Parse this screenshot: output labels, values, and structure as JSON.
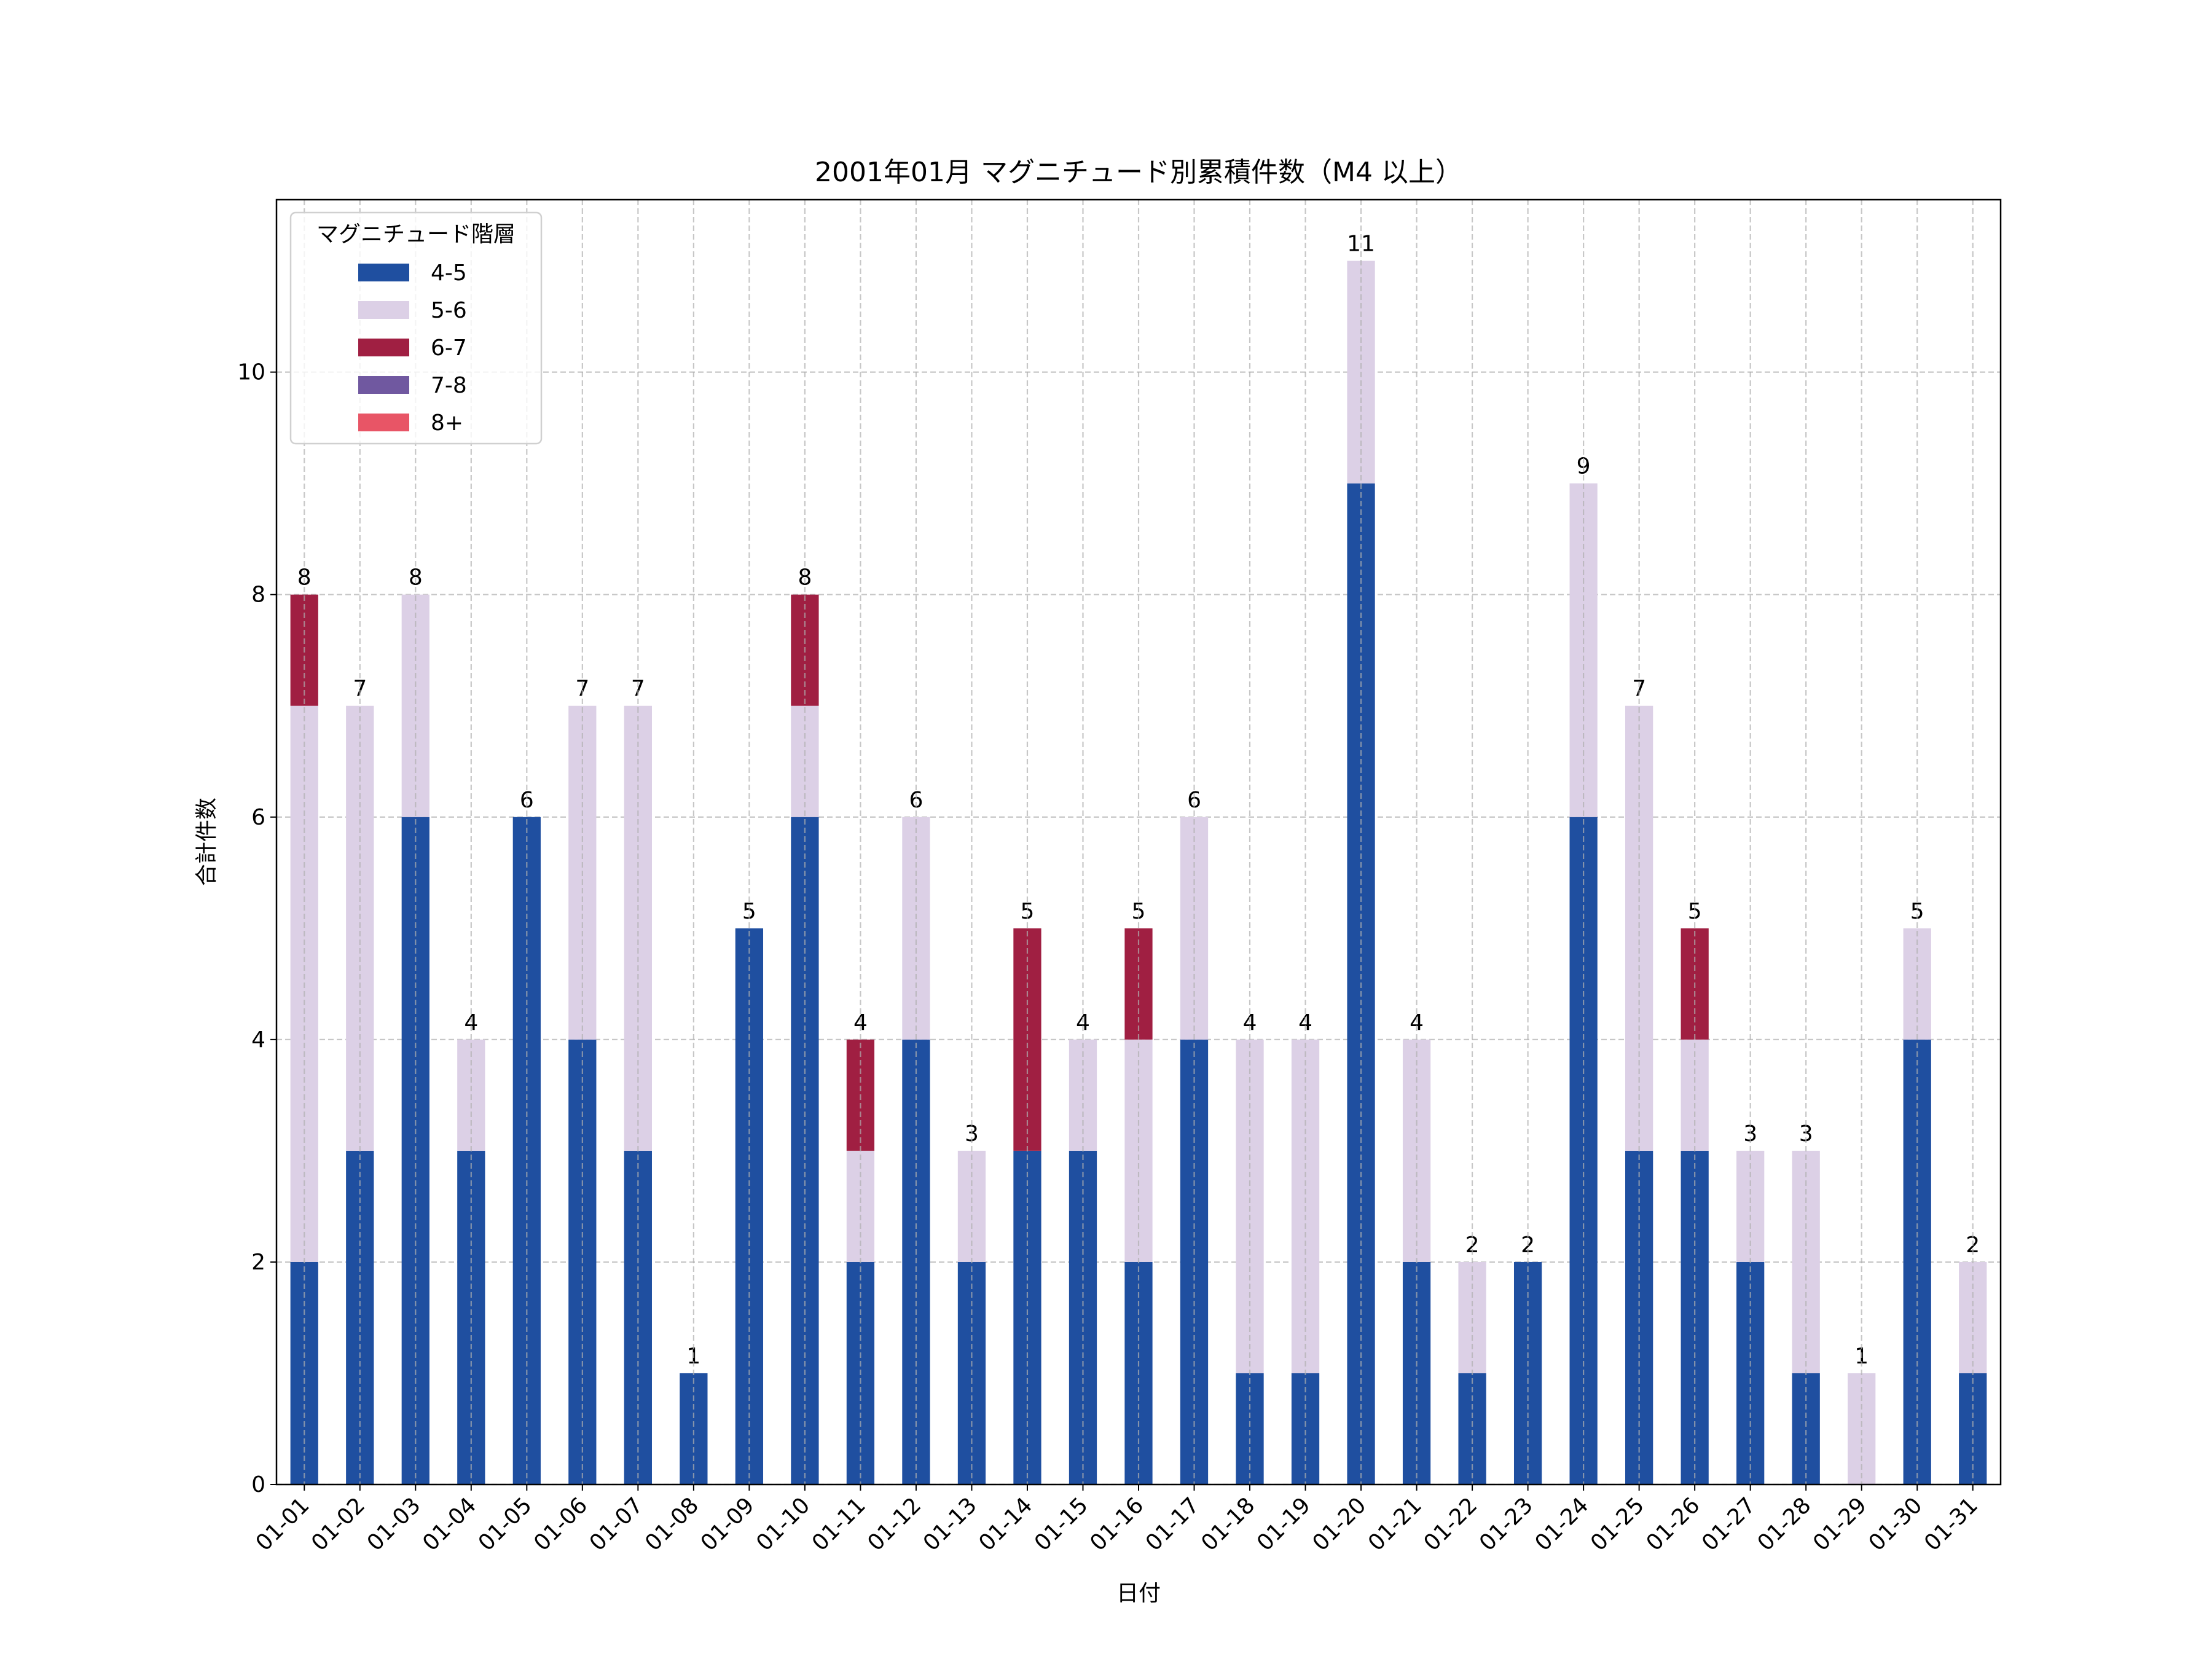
{
  "chart_data": {
    "type": "bar",
    "stacked": true,
    "title": "2001年01月 マグニチュード別累積件数（M4 以上）",
    "xlabel": "日付",
    "ylabel": "合計件数",
    "ylim": [
      0,
      11.55
    ],
    "yticks": [
      0,
      2,
      4,
      6,
      8,
      10
    ],
    "grid": true,
    "legend": {
      "title": "マグニチュード階層",
      "placement": "top-left"
    },
    "categories": [
      "01-01",
      "01-02",
      "01-03",
      "01-04",
      "01-05",
      "01-06",
      "01-07",
      "01-08",
      "01-09",
      "01-10",
      "01-11",
      "01-12",
      "01-13",
      "01-14",
      "01-15",
      "01-16",
      "01-17",
      "01-18",
      "01-19",
      "01-20",
      "01-21",
      "01-22",
      "01-23",
      "01-24",
      "01-25",
      "01-26",
      "01-27",
      "01-28",
      "01-29",
      "01-30",
      "01-31"
    ],
    "series": [
      {
        "name": "4-5",
        "color": "#1f4fa0",
        "values": [
          2,
          3,
          6,
          3,
          6,
          4,
          3,
          1,
          5,
          6,
          2,
          4,
          2,
          3,
          3,
          2,
          4,
          1,
          1,
          9,
          2,
          1,
          2,
          6,
          3,
          3,
          2,
          1,
          0,
          4,
          1
        ]
      },
      {
        "name": "5-6",
        "color": "#dcd0e6",
        "values": [
          5,
          4,
          2,
          1,
          0,
          3,
          4,
          0,
          0,
          1,
          1,
          2,
          1,
          0,
          1,
          2,
          2,
          3,
          3,
          2,
          2,
          1,
          0,
          3,
          4,
          1,
          1,
          2,
          1,
          1,
          1
        ]
      },
      {
        "name": "6-7",
        "color": "#a01f42",
        "values": [
          1,
          0,
          0,
          0,
          0,
          0,
          0,
          0,
          0,
          1,
          1,
          0,
          0,
          2,
          0,
          1,
          0,
          0,
          0,
          0,
          0,
          0,
          0,
          0,
          0,
          1,
          0,
          0,
          0,
          0,
          0
        ]
      },
      {
        "name": "7-8",
        "color": "#7058a0",
        "values": [
          0,
          0,
          0,
          0,
          0,
          0,
          0,
          0,
          0,
          0,
          0,
          0,
          0,
          0,
          0,
          0,
          0,
          0,
          0,
          0,
          0,
          0,
          0,
          0,
          0,
          0,
          0,
          0,
          0,
          0,
          0
        ]
      },
      {
        "name": "8+",
        "color": "#e85566",
        "values": [
          0,
          0,
          0,
          0,
          0,
          0,
          0,
          0,
          0,
          0,
          0,
          0,
          0,
          0,
          0,
          0,
          0,
          0,
          0,
          0,
          0,
          0,
          0,
          0,
          0,
          0,
          0,
          0,
          0,
          0,
          0
        ]
      }
    ],
    "totals": [
      8,
      7,
      8,
      4,
      6,
      7,
      7,
      1,
      5,
      8,
      4,
      6,
      3,
      5,
      4,
      5,
      6,
      4,
      4,
      11,
      4,
      2,
      2,
      9,
      7,
      5,
      3,
      3,
      1,
      5,
      2
    ]
  }
}
